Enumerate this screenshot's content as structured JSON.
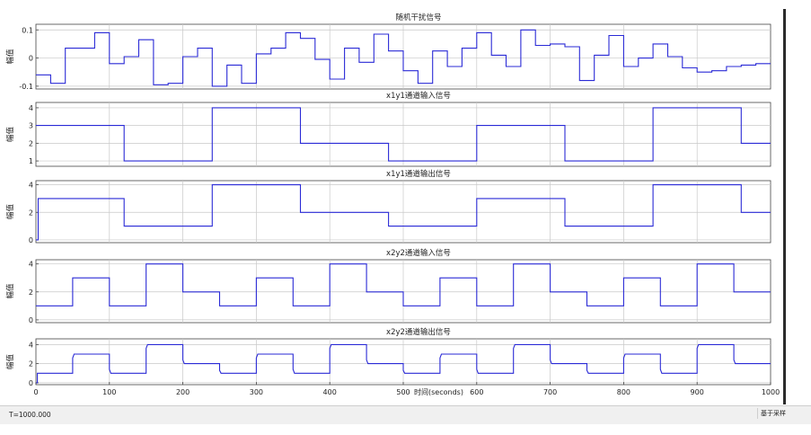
{
  "status_bar": {
    "left_text": "T=1000.000",
    "right_text": "基于采样"
  },
  "chart_data": [
    {
      "type": "line",
      "title": "随机干扰信号",
      "ylabel": "幅值",
      "xlim": [
        0,
        1000
      ],
      "ylim": [
        -0.11,
        0.12
      ],
      "yticks": [
        -0.1,
        0,
        0.1
      ],
      "ytick_labels": [
        "-0.1",
        "0",
        "0.1"
      ],
      "grid": true,
      "series": [
        {
          "color": "#2a2ad6",
          "x": [
            0,
            20,
            20,
            40,
            40,
            80,
            80,
            100,
            100,
            120,
            120,
            140,
            140,
            160,
            160,
            180,
            180,
            200,
            200,
            220,
            220,
            240,
            240,
            260,
            260,
            280,
            280,
            300,
            300,
            320,
            320,
            340,
            340,
            360,
            360,
            380,
            380,
            400,
            400,
            420,
            420,
            440,
            440,
            460,
            460,
            480,
            480,
            500,
            500,
            520,
            520,
            540,
            540,
            560,
            560,
            580,
            580,
            600,
            600,
            620,
            620,
            640,
            640,
            660,
            660,
            680,
            680,
            700,
            700,
            720,
            720,
            740,
            740,
            760,
            760,
            780,
            780,
            800,
            800,
            820,
            820,
            840,
            840,
            860,
            860,
            880,
            880,
            900,
            900,
            920,
            920,
            940,
            940,
            960,
            960,
            980,
            980,
            1000
          ],
          "y": [
            -0.06,
            -0.06,
            -0.09,
            -0.09,
            0.035,
            0.035,
            0.09,
            0.09,
            -0.02,
            -0.02,
            0.005,
            0.005,
            0.065,
            0.065,
            -0.095,
            -0.095,
            -0.09,
            -0.09,
            0.005,
            0.005,
            0.035,
            0.035,
            -0.1,
            -0.1,
            -0.025,
            -0.025,
            -0.09,
            -0.09,
            0.015,
            0.015,
            0.035,
            0.035,
            0.09,
            0.09,
            0.07,
            0.07,
            -0.005,
            -0.005,
            -0.075,
            -0.075,
            0.035,
            0.035,
            -0.015,
            -0.015,
            0.085,
            0.085,
            0.025,
            0.025,
            -0.045,
            -0.045,
            -0.09,
            -0.09,
            0.025,
            0.025,
            -0.03,
            -0.03,
            0.035,
            0.035,
            0.09,
            0.09,
            0.01,
            0.01,
            -0.03,
            -0.03,
            0.1,
            0.1,
            0.045,
            0.045,
            0.05,
            0.05,
            0.04,
            0.04,
            -0.08,
            -0.08,
            0.01,
            0.01,
            0.08,
            0.08,
            -0.03,
            -0.03,
            0.0,
            0.0,
            0.05,
            0.05,
            0.005,
            0.005,
            -0.035,
            -0.035,
            -0.05,
            -0.05,
            -0.045,
            -0.045,
            -0.03,
            -0.03,
            -0.025,
            -0.025,
            -0.02,
            -0.02
          ]
        }
      ]
    },
    {
      "type": "line",
      "title": "x1y1通道输入信号",
      "ylabel": "幅值",
      "xlim": [
        0,
        1000
      ],
      "ylim": [
        0.7,
        4.3
      ],
      "yticks": [
        1,
        2,
        3,
        4
      ],
      "ytick_labels": [
        "1",
        "2",
        "3",
        "4"
      ],
      "grid": true,
      "series": [
        {
          "color": "#2a2ad6",
          "x": [
            0,
            120,
            120,
            240,
            240,
            360,
            360,
            480,
            480,
            600,
            600,
            720,
            720,
            840,
            840,
            960,
            960,
            1000
          ],
          "y": [
            3,
            3,
            1,
            1,
            4,
            4,
            2,
            2,
            1,
            1,
            3,
            3,
            1,
            1,
            4,
            4,
            2,
            2
          ]
        }
      ]
    },
    {
      "type": "line",
      "title": "x1y1通道输出信号",
      "ylabel": "幅值",
      "xlim": [
        0,
        1000
      ],
      "ylim": [
        -0.2,
        4.3
      ],
      "yticks": [
        0,
        2,
        4
      ],
      "ytick_labels": [
        "0",
        "2",
        "4"
      ],
      "grid": true,
      "series": [
        {
          "color": "#2a2ad6",
          "x": [
            0,
            3,
            3,
            120,
            120,
            240,
            240,
            360,
            360,
            480,
            480,
            600,
            600,
            720,
            720,
            840,
            840,
            960,
            960,
            1000
          ],
          "y": [
            0,
            0,
            3,
            3,
            1,
            1,
            4,
            4,
            2,
            2,
            1,
            1,
            3,
            3,
            1,
            1,
            4,
            4,
            2,
            2
          ]
        }
      ]
    },
    {
      "type": "line",
      "title": "x2y2通道输入信号",
      "ylabel": "幅值",
      "xlim": [
        0,
        1000
      ],
      "ylim": [
        -0.2,
        4.3
      ],
      "yticks": [
        0,
        2,
        4
      ],
      "ytick_labels": [
        "0",
        "2",
        "4"
      ],
      "grid": true,
      "series": [
        {
          "color": "#2a2ad6",
          "x": [
            0,
            50,
            50,
            100,
            100,
            150,
            150,
            200,
            200,
            250,
            250,
            300,
            300,
            350,
            350,
            400,
            400,
            450,
            450,
            500,
            500,
            550,
            550,
            600,
            600,
            650,
            650,
            700,
            700,
            750,
            750,
            800,
            800,
            850,
            850,
            900,
            900,
            950,
            950,
            1000
          ],
          "y": [
            1,
            1,
            3,
            3,
            1,
            1,
            4,
            4,
            2,
            2,
            1,
            1,
            3,
            3,
            1,
            1,
            4,
            4,
            2,
            2,
            1,
            1,
            3,
            3,
            1,
            1,
            4,
            4,
            2,
            2,
            1,
            1,
            3,
            3,
            1,
            1,
            4,
            4,
            2,
            2
          ]
        }
      ]
    },
    {
      "type": "line",
      "title": "x2y2通道输出信号",
      "ylabel": "幅值",
      "xlabel": "时间(seconds)",
      "xlim": [
        0,
        1000
      ],
      "ylim": [
        -0.2,
        4.6
      ],
      "yticks": [
        0,
        2,
        4
      ],
      "ytick_labels": [
        "0",
        "2",
        "4"
      ],
      "xticks": [
        0,
        100,
        200,
        300,
        400,
        500,
        600,
        700,
        800,
        900,
        1000
      ],
      "xtick_labels": [
        "0",
        "100",
        "200",
        "300",
        "400",
        "500",
        "600",
        "700",
        "800",
        "900",
        "1000"
      ],
      "grid": true,
      "series": [
        {
          "color": "#2a2ad6",
          "x": [
            0,
            2,
            2,
            50,
            50,
            52,
            100,
            100,
            102,
            150,
            150,
            152,
            200,
            200,
            202,
            250,
            250,
            252,
            300,
            300,
            302,
            350,
            350,
            352,
            400,
            400,
            402,
            450,
            450,
            452,
            500,
            500,
            502,
            550,
            550,
            552,
            600,
            600,
            602,
            650,
            650,
            652,
            700,
            700,
            702,
            750,
            750,
            752,
            800,
            800,
            802,
            850,
            850,
            852,
            900,
            900,
            902,
            950,
            950,
            952,
            1000
          ],
          "y": [
            0,
            0,
            1,
            1,
            2.6,
            3,
            3,
            1.4,
            1,
            1,
            3.6,
            4,
            4,
            2.4,
            2,
            2,
            1.3,
            1,
            1,
            2.6,
            3,
            3,
            1.4,
            1,
            1,
            3.6,
            4,
            4,
            2.4,
            2,
            2,
            1.3,
            1,
            1,
            2.6,
            3,
            3,
            1.4,
            1,
            1,
            3.6,
            4,
            4,
            2.4,
            2,
            2,
            1.3,
            1,
            1,
            2.6,
            3,
            3,
            1.4,
            1,
            1,
            3.6,
            4,
            4,
            2.4,
            2,
            2
          ]
        }
      ]
    }
  ]
}
